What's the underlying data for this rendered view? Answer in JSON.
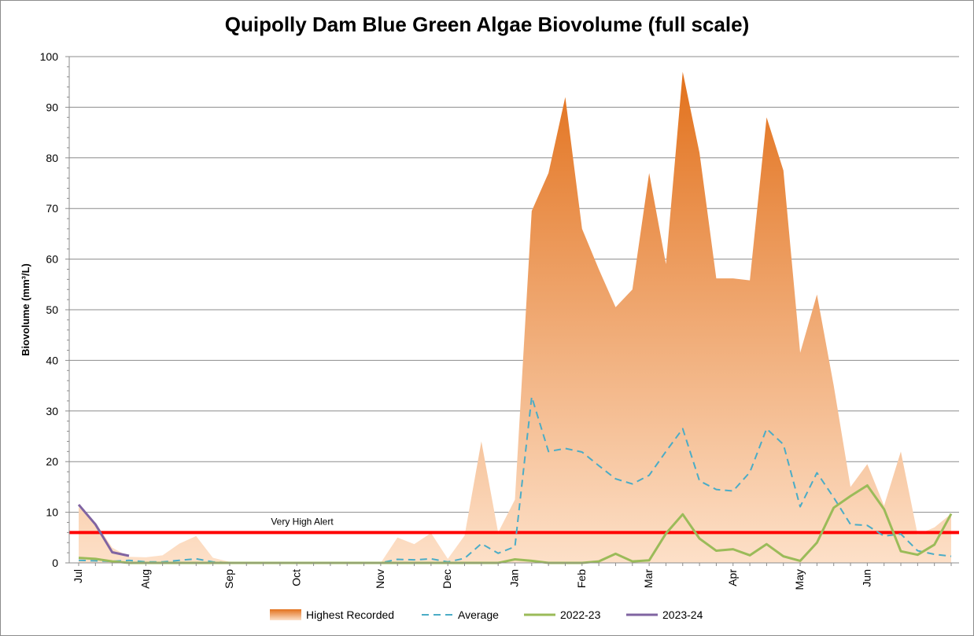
{
  "chart_data": {
    "type": "area",
    "title": "Quipolly Dam Blue Green Algae Biovolume (full scale)",
    "xlabel": "",
    "ylabel": "Biovolume (mm³/L)",
    "ylim": [
      0,
      100
    ],
    "yticks": [
      "0",
      "10",
      "20",
      "30",
      "40",
      "50",
      "60",
      "70",
      "80",
      "90",
      "100"
    ],
    "grid": true,
    "legend_placement": "bottom",
    "months": [
      "Jul",
      "Aug",
      "Sep",
      "Oct",
      "Nov",
      "Dec",
      "Jan",
      "Feb",
      "Mar",
      "Apr",
      "May",
      "Jun"
    ],
    "month_start_index": [
      0,
      4,
      9,
      13,
      18,
      22,
      26,
      30,
      34,
      39,
      43,
      47
    ],
    "weeks": 52,
    "series": [
      {
        "name": "Highest Recorded",
        "kind": "area",
        "color_top": "#e2711c",
        "color_bottom": "#fde0c8",
        "values": [
          11,
          8,
          3,
          1.2,
          1.1,
          1.5,
          3.8,
          5.3,
          1,
          0.2,
          0,
          0,
          0,
          0,
          0,
          0,
          0,
          0,
          0,
          5,
          3.7,
          5.9,
          0.8,
          5.4,
          24,
          6,
          12.5,
          69.5,
          77,
          92,
          66,
          58,
          50.5,
          54,
          77,
          59,
          97,
          81,
          56.2,
          56.2,
          55.8,
          88,
          77.5,
          41.5,
          53,
          35,
          15,
          19.5,
          11.3,
          22,
          5.6,
          7,
          9.7
        ]
      },
      {
        "name": "Average",
        "kind": "line-dashed",
        "color": "#4bacc6",
        "values": [
          0.5,
          0.4,
          0.3,
          0.5,
          0.2,
          0.2,
          0.5,
          0.8,
          0.2,
          0,
          0,
          0,
          0,
          0,
          0,
          0,
          0,
          0,
          0,
          0.7,
          0.6,
          0.8,
          0.2,
          0.9,
          3.8,
          1.9,
          3.2,
          32.8,
          22,
          22.6,
          21.9,
          19.2,
          16.6,
          15.6,
          17.3,
          22,
          26.5,
          16.2,
          14.5,
          14.2,
          17.9,
          26.5,
          23.4,
          11.1,
          17.8,
          12.9,
          7.6,
          7.4,
          5.3,
          5.7,
          2.4,
          1.7,
          1.3
        ]
      },
      {
        "name": "2022-23",
        "kind": "line",
        "color": "#9bbb59",
        "values": [
          1,
          0.8,
          0.3,
          0,
          0,
          0,
          0,
          0,
          0,
          0,
          0,
          0,
          0,
          0,
          0,
          0,
          0,
          0,
          0,
          0,
          0,
          0,
          0,
          0,
          0,
          0,
          0.7,
          0.4,
          0,
          0,
          0,
          0.3,
          1.8,
          0.3,
          0.5,
          5.8,
          9.6,
          4.8,
          2.4,
          2.7,
          1.5,
          3.7,
          1.3,
          0.4,
          4,
          10.9,
          13.2,
          15.3,
          10.6,
          2.3,
          1.6,
          3.6,
          9.7
        ]
      },
      {
        "name": "2023-24",
        "kind": "line",
        "color": "#8064a2",
        "values": [
          11.5,
          7.6,
          2.1,
          1.4
        ]
      }
    ],
    "threshold": {
      "label": "Very High Alert",
      "value": 6,
      "color": "#ff0000"
    }
  }
}
